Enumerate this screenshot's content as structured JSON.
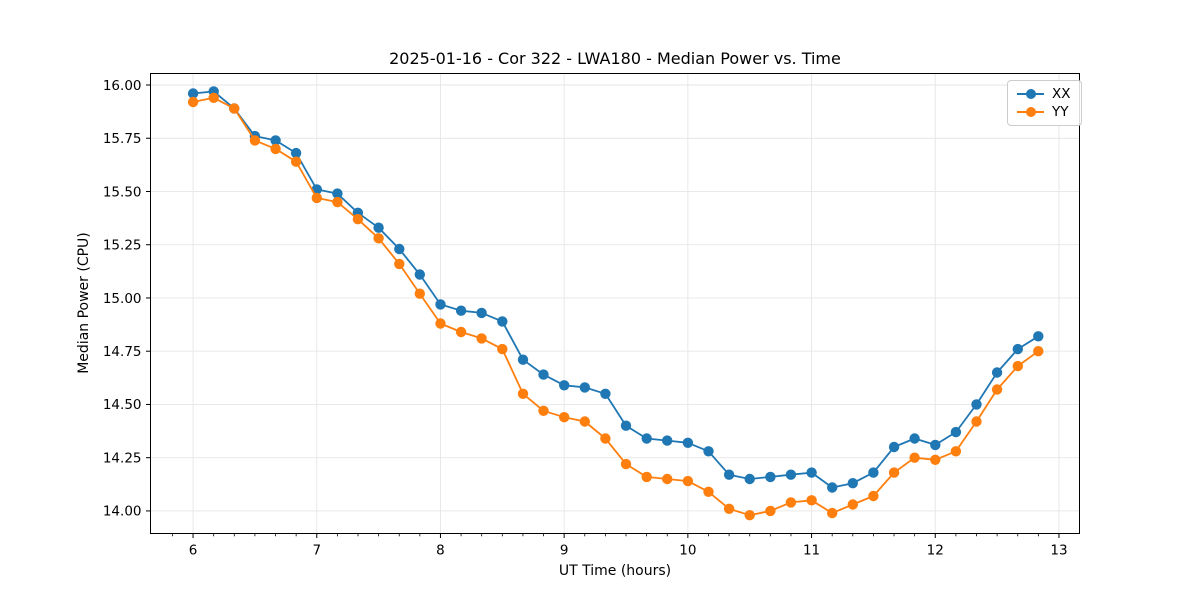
{
  "chart_data": {
    "type": "line",
    "title": "2025-01-16 - Cor 322 - LWA180 - Median Power vs. Time",
    "xlabel": "UT Time (hours)",
    "ylabel": "Median Power (CPU)",
    "xlim": [
      5.656,
      13.166
    ],
    "ylim": [
      13.894,
      16.054
    ],
    "xticks": [
      6,
      7,
      8,
      9,
      10,
      11,
      12,
      13
    ],
    "yticks": [
      14.0,
      14.25,
      14.5,
      14.75,
      15.0,
      15.25,
      15.5,
      15.75,
      16.0
    ],
    "minor_xtick_step_hours": 0.1667,
    "grid": true,
    "grid_color": "#e6e6e6",
    "x": [
      6.0,
      6.167,
      6.333,
      6.5,
      6.667,
      6.833,
      7.0,
      7.167,
      7.333,
      7.5,
      7.667,
      7.833,
      8.0,
      8.167,
      8.333,
      8.5,
      8.667,
      8.833,
      9.0,
      9.167,
      9.333,
      9.5,
      9.667,
      9.833,
      10.0,
      10.167,
      10.333,
      10.5,
      10.667,
      10.833,
      11.0,
      11.167,
      11.333,
      11.5,
      11.667,
      11.833,
      12.0,
      12.167,
      12.333,
      12.5,
      12.667,
      12.833
    ],
    "series": [
      {
        "name": "XX",
        "color": "#1f77b4",
        "marker": "circle",
        "values": [
          15.96,
          15.97,
          15.89,
          15.76,
          15.74,
          15.68,
          15.51,
          15.49,
          15.4,
          15.33,
          15.23,
          15.11,
          14.97,
          14.94,
          14.93,
          14.89,
          14.71,
          14.64,
          14.59,
          14.58,
          14.55,
          14.4,
          14.34,
          14.33,
          14.32,
          14.28,
          14.17,
          14.15,
          14.16,
          14.17,
          14.18,
          14.11,
          14.13,
          14.18,
          14.3,
          14.34,
          14.31,
          14.37,
          14.5,
          14.65,
          14.76,
          14.82
        ]
      },
      {
        "name": "YY",
        "color": "#ff7f0e",
        "marker": "circle",
        "values": [
          15.92,
          15.94,
          15.89,
          15.74,
          15.7,
          15.64,
          15.47,
          15.45,
          15.37,
          15.28,
          15.16,
          15.02,
          14.88,
          14.84,
          14.81,
          14.76,
          14.55,
          14.47,
          14.44,
          14.42,
          14.34,
          14.22,
          14.16,
          14.15,
          14.14,
          14.09,
          14.01,
          13.98,
          14.0,
          14.04,
          14.05,
          13.99,
          14.03,
          14.07,
          14.18,
          14.25,
          14.24,
          14.28,
          14.42,
          14.57,
          14.68,
          14.75
        ]
      }
    ],
    "legend_position": "upper right"
  },
  "legend": {
    "entries": [
      {
        "label": "XX",
        "color": "#1f77b4"
      },
      {
        "label": "YY",
        "color": "#ff7f0e"
      }
    ]
  }
}
